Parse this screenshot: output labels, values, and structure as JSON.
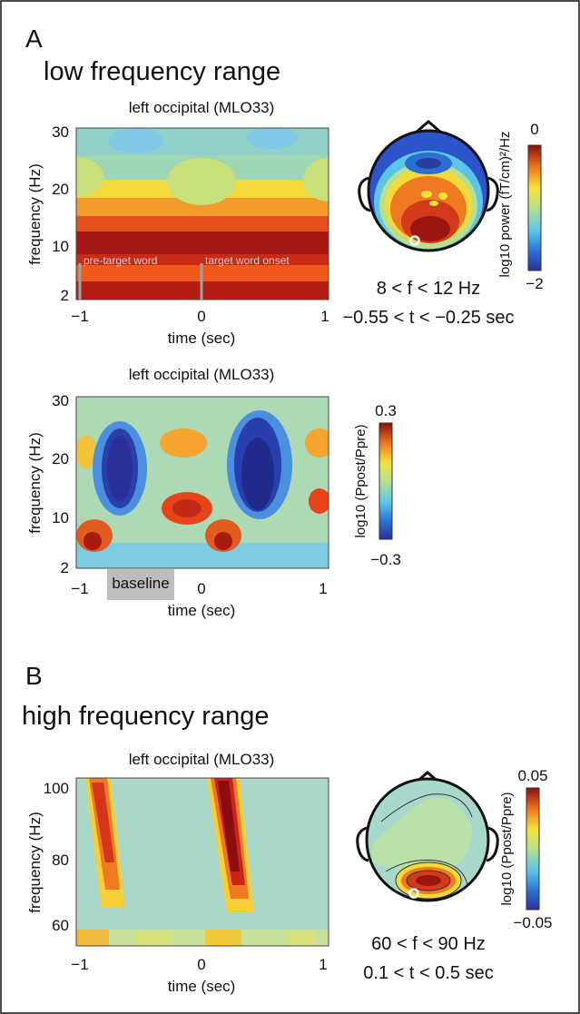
{
  "panel_a": {
    "letter": "A",
    "heading": "low frequency range",
    "plot1": {
      "title": "left occipital (MLO33)",
      "ylabel": "frequency (Hz)",
      "xlabel": "time (sec)",
      "yticks": [
        "30",
        "20",
        "10",
        "2"
      ],
      "xticks": [
        "−1",
        "0",
        "1"
      ],
      "annotations": [
        "pre-target word",
        "target word onset"
      ]
    },
    "topo1": {
      "f_range": "8 < f < 12 Hz",
      "t_range": "−0.55 < t < −0.25 sec",
      "colorbar_label": "log10 power (fT/cm)²/Hz",
      "colorbar_max": "0",
      "colorbar_min": "−2"
    },
    "plot2": {
      "title": "left occipital (MLO33)",
      "ylabel": "frequency (Hz)",
      "xlabel": "time (sec)",
      "yticks": [
        "30",
        "20",
        "10",
        "2"
      ],
      "xticks": [
        "−1",
        "0",
        "1"
      ],
      "baseline_label": "baseline",
      "colorbar_label": "log10 (Ppost/Ppre)",
      "colorbar_max": "0.3",
      "colorbar_min": "−0.3"
    }
  },
  "panel_b": {
    "letter": "B",
    "heading": "high frequency range",
    "plot3": {
      "title": "left occipital (MLO33)",
      "ylabel": "frequency (Hz)",
      "xlabel": "time (sec)",
      "yticks": [
        "100",
        "80",
        "60"
      ],
      "xticks": [
        "−1",
        "0",
        "1"
      ]
    },
    "topo2": {
      "f_range": "60 < f < 90 Hz",
      "t_range": "0.1 < t < 0.5 sec",
      "colorbar_label": "log10 (Ppost/Ppre)",
      "colorbar_max": "0.05",
      "colorbar_min": "−0.05"
    }
  }
}
